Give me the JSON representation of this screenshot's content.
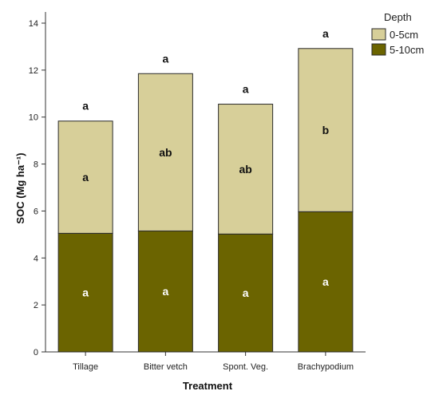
{
  "chart_data": {
    "type": "bar",
    "stacked": true,
    "categories": [
      "Tillage",
      "Bitter vetch",
      "Spont. Veg.",
      "Brachypodium"
    ],
    "series": [
      {
        "name": "5-10cm",
        "values": [
          5.05,
          5.15,
          5.02,
          5.97
        ],
        "color": "#6b6400",
        "letters": [
          "a",
          "a",
          "a",
          "a"
        ]
      },
      {
        "name": "0-5cm",
        "values": [
          4.78,
          6.7,
          5.53,
          6.95
        ],
        "color": "#d7cf99",
        "letters": [
          "a",
          "ab",
          "ab",
          "b"
        ]
      }
    ],
    "total_letters": [
      "a",
      "a",
      "a",
      "a"
    ],
    "xlabel": "Treatment",
    "ylabel": "SOC (Mg ha⁻¹)",
    "ylim": [
      0,
      14
    ],
    "yticks": [
      0,
      2,
      4,
      6,
      8,
      10,
      12,
      14
    ],
    "legend": {
      "title": "Depth",
      "position": "top-right"
    },
    "grid": false
  }
}
